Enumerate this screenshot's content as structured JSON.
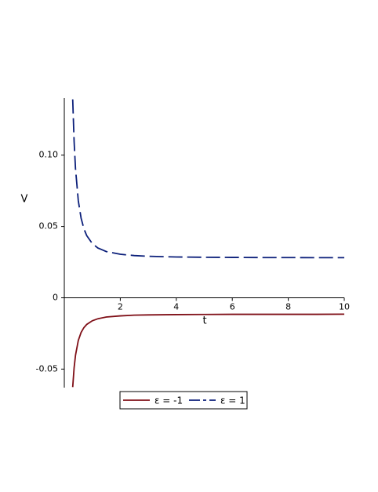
{
  "chart_data": {
    "type": "line",
    "x_label": "t",
    "y_label": "V",
    "x": [
      0.3,
      0.35,
      0.4,
      0.5,
      0.6,
      0.7,
      0.8,
      1,
      1.2,
      1.5,
      2,
      2.5,
      3,
      4,
      5,
      6,
      7,
      8,
      9,
      10
    ],
    "series": [
      {
        "name": "ε = -1",
        "color": "#7f0f17",
        "dashed": false,
        "values": [
          -0.0626,
          -0.0491,
          -0.0403,
          -0.0299,
          -0.0243,
          -0.0209,
          -0.0187,
          -0.0161,
          -0.0147,
          -0.0135,
          -0.0127,
          -0.0122,
          -0.012,
          -0.0118,
          -0.0117,
          -0.0116,
          -0.0116,
          -0.0116,
          -0.0116,
          -0.0115
        ]
      },
      {
        "name": "ε = 1",
        "color": "#0b1f7a",
        "dashed": true,
        "values": [
          0.1391,
          0.1096,
          0.0905,
          0.068,
          0.0558,
          0.0484,
          0.0436,
          0.038,
          0.0349,
          0.0324,
          0.0305,
          0.0296,
          0.0291,
          0.0286,
          0.0284,
          0.0283,
          0.0282,
          0.0282,
          0.0281,
          0.0281
        ]
      }
    ],
    "xlim": [
      0,
      10
    ],
    "ylim": [
      -0.063,
      0.14
    ],
    "xticks": [
      2,
      4,
      6,
      8,
      10
    ],
    "yticks": [
      -0.05,
      0,
      0.05,
      {
        "value": 0.1,
        "label": "0.10"
      }
    ]
  }
}
